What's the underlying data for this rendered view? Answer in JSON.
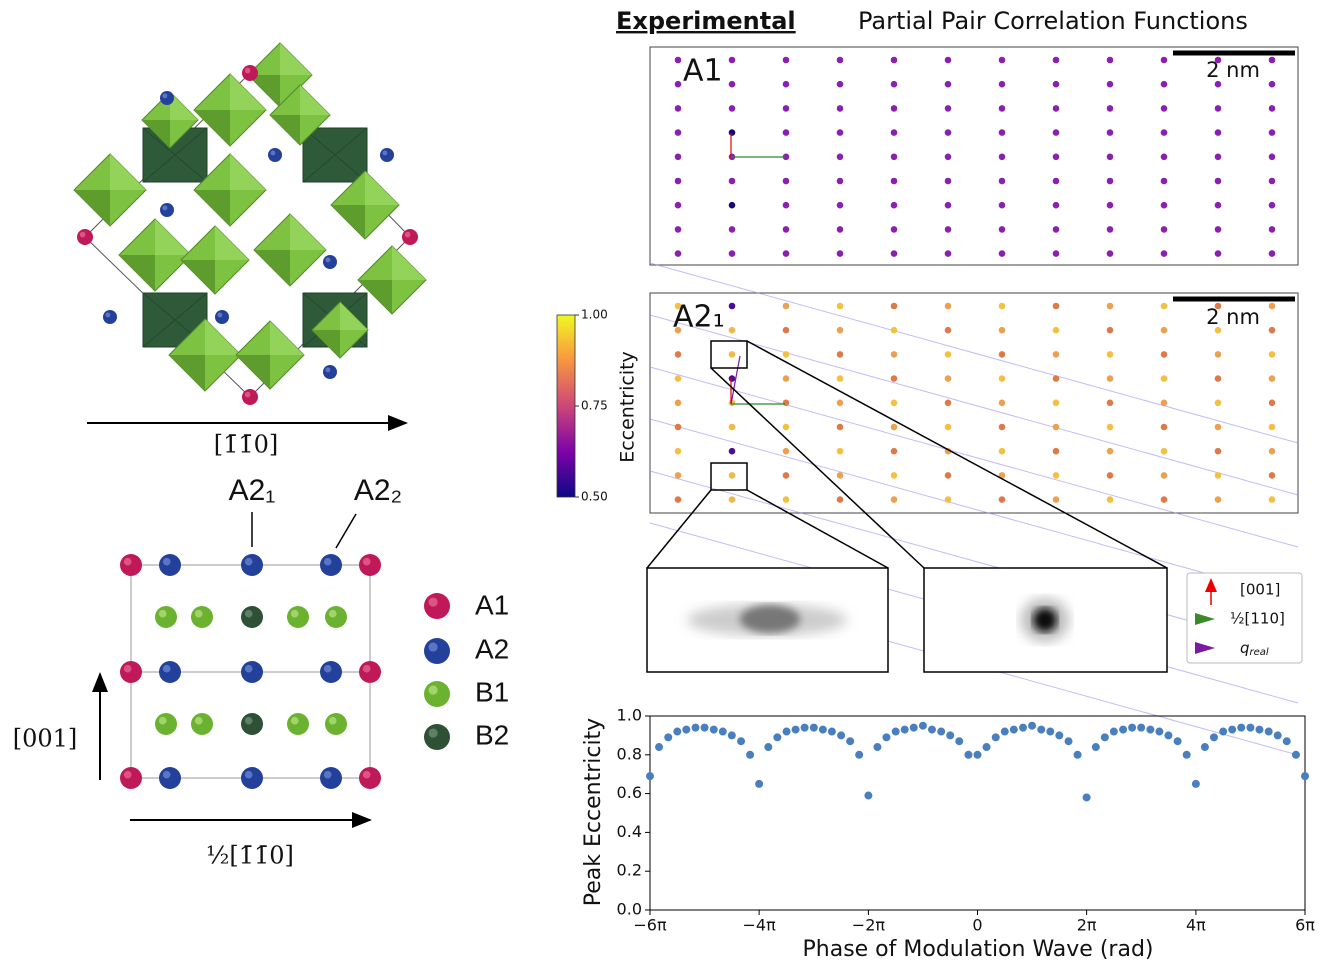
{
  "figure": {
    "title_bold": "Experimental",
    "title_rest": "Partial Pair Correlation Functions",
    "structure": {
      "axis_label": "[1̄1̄0]",
      "site_labels": [
        "A2₁",
        "A2₂"
      ],
      "vertical_axis": "[001]",
      "horizontal_axis": "½[1̄1̄0]",
      "legend": [
        "A1",
        "A2",
        "B1",
        "B2"
      ]
    },
    "panels": [
      {
        "label": "A1",
        "scale_bar": "2 nm"
      },
      {
        "label": "A2₁",
        "scale_bar": "2 nm"
      }
    ],
    "colorbar": {
      "label": "Eccentricity",
      "lim": [
        0.5,
        1
      ],
      "ticks": [
        {
          "value": 1,
          "label": "1.00"
        },
        {
          "value": 0.75,
          "label": "0.75"
        },
        {
          "value": 0.5,
          "label": "0.50"
        }
      ]
    },
    "vector_legend": {
      "c": "[001]",
      "h": "½[110]",
      "q": "q",
      "q_sub": "real"
    }
  },
  "chart_data": {
    "type": "scatter",
    "xlabel": "Phase of Modulation Wave (rad)",
    "ylabel": "Peak Eccentricity",
    "color": "#4a7fbf",
    "x": [
      -18.85,
      -18.33,
      -17.8,
      -17.28,
      -16.76,
      -16.23,
      -15.71,
      -15.18,
      -14.66,
      -14.14,
      -13.61,
      -13.09,
      -12.57,
      -12.04,
      -11.52,
      -10.99,
      -10.47,
      -9.95,
      -9.42,
      -8.9,
      -8.38,
      -7.85,
      -7.33,
      -6.81,
      -6.28,
      -5.76,
      -5.24,
      -4.71,
      -4.19,
      -3.67,
      -3.14,
      -2.62,
      -2.09,
      -1.57,
      -1.05,
      -0.52,
      0,
      0.52,
      1.05,
      1.57,
      2.09,
      2.62,
      3.14,
      3.67,
      4.19,
      4.71,
      5.24,
      5.76,
      6.28,
      6.81,
      7.33,
      7.85,
      8.38,
      8.9,
      9.42,
      9.95,
      10.47,
      10.99,
      11.52,
      12.04,
      12.57,
      13.09,
      13.61,
      14.14,
      14.66,
      15.18,
      15.71,
      16.23,
      16.76,
      17.28,
      17.8,
      18.33,
      18.85
    ],
    "values": [
      0.69,
      0.84,
      0.89,
      0.92,
      0.93,
      0.94,
      0.94,
      0.93,
      0.92,
      0.9,
      0.87,
      0.8,
      0.65,
      0.84,
      0.89,
      0.92,
      0.93,
      0.94,
      0.94,
      0.93,
      0.92,
      0.9,
      0.87,
      0.8,
      0.59,
      0.84,
      0.89,
      0.92,
      0.93,
      0.94,
      0.95,
      0.93,
      0.92,
      0.9,
      0.87,
      0.8,
      0.8,
      0.84,
      0.89,
      0.92,
      0.93,
      0.94,
      0.95,
      0.93,
      0.92,
      0.9,
      0.87,
      0.8,
      0.58,
      0.84,
      0.89,
      0.92,
      0.93,
      0.94,
      0.94,
      0.93,
      0.92,
      0.9,
      0.87,
      0.8,
      0.65,
      0.84,
      0.89,
      0.92,
      0.93,
      0.94,
      0.94,
      0.93,
      0.92,
      0.9,
      0.87,
      0.8,
      0.69
    ],
    "xlim": [
      -18.85,
      18.85
    ],
    "ylim": [
      0,
      1
    ],
    "xticks": [
      {
        "value": -18.85,
        "label": "−6π"
      },
      {
        "value": -12.57,
        "label": "−4π"
      },
      {
        "value": -6.28,
        "label": "−2π"
      },
      0,
      {
        "value": 6.28,
        "label": "2π"
      },
      {
        "value": 12.57,
        "label": "4π"
      },
      {
        "value": 18.85,
        "label": "6π"
      }
    ],
    "yticks": [
      {
        "value": 0,
        "label": "0.0"
      },
      {
        "value": 0.2,
        "label": "0.2"
      },
      {
        "value": 0.4,
        "label": "0.4"
      },
      {
        "value": 0.6,
        "label": "0.6"
      },
      {
        "value": 0.8,
        "label": "0.8"
      },
      {
        "value": 1,
        "label": "1.0"
      }
    ]
  }
}
